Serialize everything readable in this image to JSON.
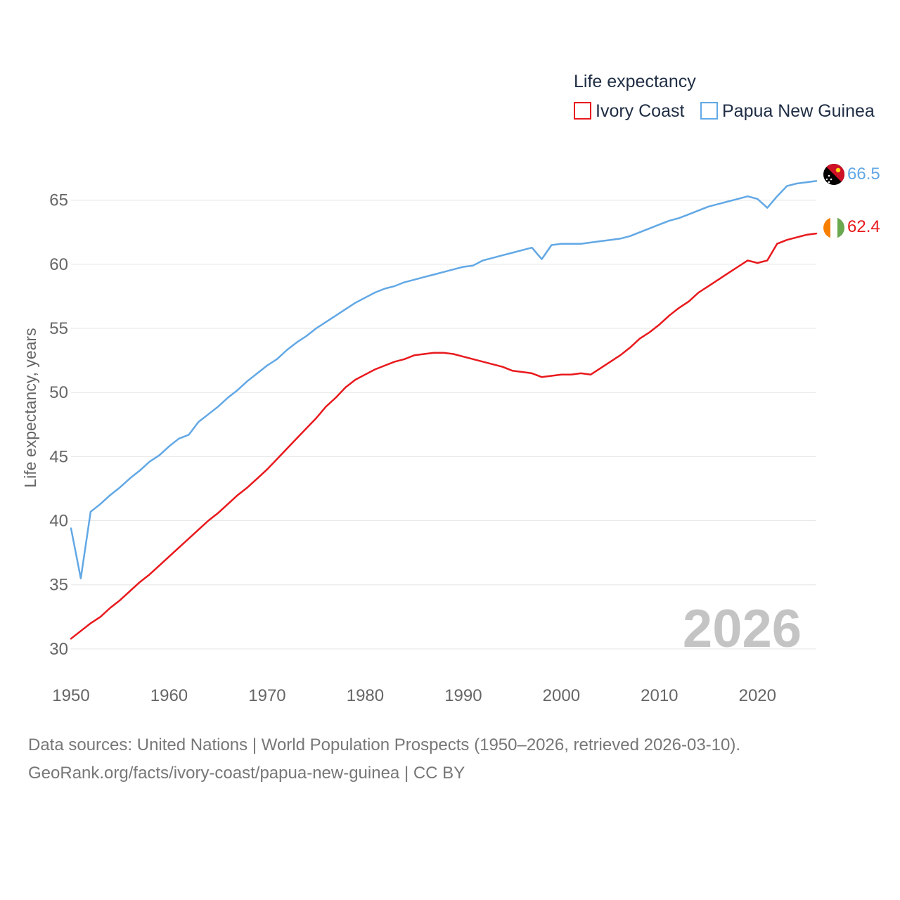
{
  "colors": {
    "ivory_coast": "#e8191d",
    "papua_new_guinea": "#62a8e5",
    "grid": "#e6e6e6",
    "watermark": "#c4c4c4"
  },
  "legend": {
    "title": "Life expectancy",
    "items": [
      "Ivory Coast",
      "Papua New Guinea"
    ]
  },
  "year_label": "2026",
  "end_labels": {
    "ivory_coast": "62.4",
    "papua_new_guinea": "66.5"
  },
  "source": {
    "line1": "Data sources: United Nations | World Population Prospects (1950–2026, retrieved 2026-03-10).",
    "line2": "GeoRank.org/facts/ivory-coast/papua-new-guinea | CC BY"
  },
  "chart_data": {
    "type": "line",
    "title": "Life expectancy",
    "xlabel": "",
    "ylabel": "Life expectancy, years",
    "xlim": [
      1950,
      2026
    ],
    "ylim": [
      29.5,
      68
    ],
    "x_ticks": [
      1950,
      1960,
      1970,
      1980,
      1990,
      2000,
      2010,
      2020
    ],
    "y_ticks": [
      30,
      35,
      40,
      45,
      50,
      55,
      60,
      65
    ],
    "grid": true,
    "legend_position": "top-right",
    "series": [
      {
        "name": "Ivory Coast",
        "key": "ivory_coast",
        "points": [
          [
            1950,
            30.8
          ],
          [
            1952,
            32.0
          ],
          [
            1953,
            32.5
          ],
          [
            1954,
            33.2
          ],
          [
            1955,
            33.8
          ],
          [
            1956,
            34.5
          ],
          [
            1957,
            35.2
          ],
          [
            1958,
            35.8
          ],
          [
            1959,
            36.5
          ],
          [
            1960,
            37.2
          ],
          [
            1961,
            37.9
          ],
          [
            1962,
            38.6
          ],
          [
            1963,
            39.3
          ],
          [
            1964,
            40.0
          ],
          [
            1965,
            40.6
          ],
          [
            1966,
            41.3
          ],
          [
            1967,
            42.0
          ],
          [
            1968,
            42.6
          ],
          [
            1969,
            43.3
          ],
          [
            1970,
            44.0
          ],
          [
            1971,
            44.8
          ],
          [
            1972,
            45.6
          ],
          [
            1973,
            46.4
          ],
          [
            1974,
            47.2
          ],
          [
            1975,
            48.0
          ],
          [
            1976,
            48.9
          ],
          [
            1977,
            49.6
          ],
          [
            1978,
            50.4
          ],
          [
            1979,
            51.0
          ],
          [
            1980,
            51.4
          ],
          [
            1981,
            51.8
          ],
          [
            1982,
            52.1
          ],
          [
            1983,
            52.4
          ],
          [
            1984,
            52.6
          ],
          [
            1985,
            52.9
          ],
          [
            1986,
            53.0
          ],
          [
            1987,
            53.1
          ],
          [
            1988,
            53.1
          ],
          [
            1989,
            53.0
          ],
          [
            1990,
            52.8
          ],
          [
            1991,
            52.6
          ],
          [
            1992,
            52.4
          ],
          [
            1993,
            52.2
          ],
          [
            1994,
            52.0
          ],
          [
            1995,
            51.7
          ],
          [
            1996,
            51.6
          ],
          [
            1997,
            51.5
          ],
          [
            1998,
            51.2
          ],
          [
            1999,
            51.3
          ],
          [
            2000,
            51.4
          ],
          [
            2001,
            51.4
          ],
          [
            2002,
            51.5
          ],
          [
            2003,
            51.4
          ],
          [
            2004,
            51.9
          ],
          [
            2005,
            52.4
          ],
          [
            2006,
            52.9
          ],
          [
            2007,
            53.5
          ],
          [
            2008,
            54.2
          ],
          [
            2009,
            54.7
          ],
          [
            2010,
            55.3
          ],
          [
            2011,
            56.0
          ],
          [
            2012,
            56.6
          ],
          [
            2013,
            57.1
          ],
          [
            2014,
            57.8
          ],
          [
            2015,
            58.3
          ],
          [
            2016,
            58.8
          ],
          [
            2017,
            59.3
          ],
          [
            2018,
            59.8
          ],
          [
            2019,
            60.3
          ],
          [
            2020,
            60.1
          ],
          [
            2021,
            60.3
          ],
          [
            2022,
            61.6
          ],
          [
            2023,
            61.9
          ],
          [
            2024,
            62.1
          ],
          [
            2025,
            62.3
          ],
          [
            2026,
            62.4
          ]
        ]
      },
      {
        "name": "Papua New Guinea",
        "key": "papua_new_guinea",
        "points": [
          [
            1950,
            39.4
          ],
          [
            1951,
            35.5
          ],
          [
            1952,
            40.7
          ],
          [
            1953,
            41.3
          ],
          [
            1954,
            42.0
          ],
          [
            1955,
            42.6
          ],
          [
            1956,
            43.3
          ],
          [
            1957,
            43.9
          ],
          [
            1958,
            44.6
          ],
          [
            1959,
            45.1
          ],
          [
            1960,
            45.8
          ],
          [
            1961,
            46.4
          ],
          [
            1962,
            46.7
          ],
          [
            1963,
            47.7
          ],
          [
            1964,
            48.3
          ],
          [
            1965,
            48.9
          ],
          [
            1966,
            49.6
          ],
          [
            1967,
            50.2
          ],
          [
            1968,
            50.9
          ],
          [
            1969,
            51.5
          ],
          [
            1970,
            52.1
          ],
          [
            1971,
            52.6
          ],
          [
            1972,
            53.3
          ],
          [
            1973,
            53.9
          ],
          [
            1974,
            54.4
          ],
          [
            1975,
            55.0
          ],
          [
            1976,
            55.5
          ],
          [
            1977,
            56.0
          ],
          [
            1978,
            56.5
          ],
          [
            1979,
            57.0
          ],
          [
            1980,
            57.4
          ],
          [
            1981,
            57.8
          ],
          [
            1982,
            58.1
          ],
          [
            1983,
            58.3
          ],
          [
            1984,
            58.6
          ],
          [
            1985,
            58.8
          ],
          [
            1986,
            59.0
          ],
          [
            1987,
            59.2
          ],
          [
            1988,
            59.4
          ],
          [
            1989,
            59.6
          ],
          [
            1990,
            59.8
          ],
          [
            1991,
            59.9
          ],
          [
            1992,
            60.3
          ],
          [
            1993,
            60.5
          ],
          [
            1994,
            60.7
          ],
          [
            1995,
            60.9
          ],
          [
            1996,
            61.1
          ],
          [
            1997,
            61.3
          ],
          [
            1998,
            60.4
          ],
          [
            1999,
            61.5
          ],
          [
            2000,
            61.6
          ],
          [
            2001,
            61.6
          ],
          [
            2002,
            61.6
          ],
          [
            2003,
            61.7
          ],
          [
            2004,
            61.8
          ],
          [
            2005,
            61.9
          ],
          [
            2006,
            62.0
          ],
          [
            2007,
            62.2
          ],
          [
            2008,
            62.5
          ],
          [
            2009,
            62.8
          ],
          [
            2010,
            63.1
          ],
          [
            2011,
            63.4
          ],
          [
            2012,
            63.6
          ],
          [
            2013,
            63.9
          ],
          [
            2014,
            64.2
          ],
          [
            2015,
            64.5
          ],
          [
            2016,
            64.7
          ],
          [
            2017,
            64.9
          ],
          [
            2018,
            65.1
          ],
          [
            2019,
            65.3
          ],
          [
            2020,
            65.1
          ],
          [
            2021,
            64.4
          ],
          [
            2022,
            65.3
          ],
          [
            2023,
            66.1
          ],
          [
            2024,
            66.3
          ],
          [
            2025,
            66.4
          ],
          [
            2026,
            66.5
          ]
        ]
      }
    ]
  }
}
